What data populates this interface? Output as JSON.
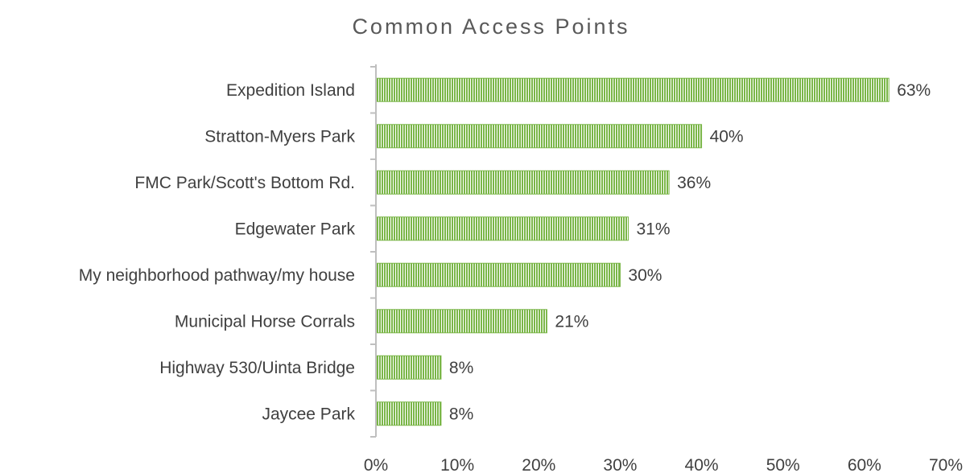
{
  "chart_data": {
    "type": "bar",
    "orientation": "horizontal",
    "title": "Common Access Points",
    "xlabel": "",
    "ylabel": "",
    "categories": [
      "Expedition Island",
      "Stratton-Myers Park",
      "FMC Park/Scott's Bottom Rd.",
      "Edgewater Park",
      "My neighborhood pathway/my house",
      "Municipal Horse Corrals",
      "Highway 530/Uinta Bridge",
      "Jaycee Park"
    ],
    "values": [
      63,
      40,
      36,
      31,
      30,
      21,
      8,
      8
    ],
    "data_labels": [
      "63%",
      "40%",
      "36%",
      "31%",
      "30%",
      "21%",
      "8%",
      "8%"
    ],
    "xlim": [
      0,
      70
    ],
    "x_ticks": [
      0,
      10,
      20,
      30,
      40,
      50,
      60,
      70
    ],
    "x_tick_labels": [
      "0%",
      "10%",
      "20%",
      "30%",
      "40%",
      "50%",
      "60%",
      "70%"
    ],
    "grid": false,
    "legend": "none",
    "colors": {
      "bar_fill": "#7ab648",
      "bar_stripe": "#ffffff",
      "axis": "#bfbfbf",
      "text": "#404040",
      "title": "#595959"
    }
  }
}
